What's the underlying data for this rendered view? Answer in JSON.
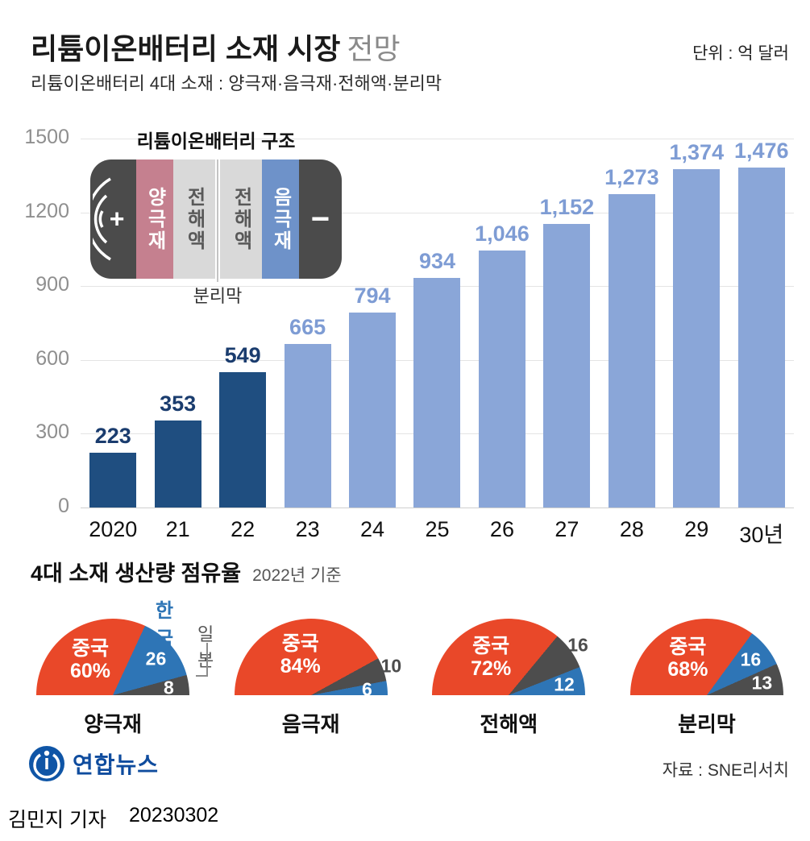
{
  "header": {
    "title_main": "리튬이온배터리 소재 시장",
    "title_sub": "전망",
    "unit": "단위 : 억 달러",
    "subtitle": "리튬이온배터리 4대 소재 : 양극재·음극재·전해액·분리막"
  },
  "battery": {
    "title": "리튬이온배터리 구조",
    "separator_label": "분리막",
    "segments": [
      {
        "kind": "cap-plus",
        "label": "+",
        "color": "#4b4b4b",
        "text_color": "#ffffff"
      },
      {
        "kind": "material",
        "label": "양극재",
        "color": "#c5808f",
        "text_color": "#ffffff"
      },
      {
        "kind": "material",
        "label": "전해액",
        "color": "#d9d9d9",
        "text_color": "#595959"
      },
      {
        "kind": "material",
        "label": "전해액",
        "color": "#d9d9d9",
        "text_color": "#595959"
      },
      {
        "kind": "material",
        "label": "음극재",
        "color": "#6e92c9",
        "text_color": "#ffffff"
      },
      {
        "kind": "cap-minus",
        "label": "−",
        "color": "#4b4b4b",
        "text_color": "#ffffff"
      }
    ]
  },
  "share_section": {
    "title": "4대 소재 생산량 점유율",
    "subtitle": "2022년 기준",
    "callout_korea": "한국",
    "callout_japan": "일본"
  },
  "footer": {
    "logo_text": "연합뉴스",
    "source": "자료 : SNE리서치"
  },
  "byline": {
    "name": "김민지 기자",
    "date": "20230302"
  },
  "chart_data": [
    {
      "type": "bar",
      "title": "리튬이온배터리 소재 시장 전망",
      "unit": "억 달러",
      "categories": [
        "2020",
        "21",
        "22",
        "23",
        "24",
        "25",
        "26",
        "27",
        "28",
        "29",
        "30년"
      ],
      "values": [
        223,
        353,
        549,
        665,
        794,
        934,
        1046,
        1152,
        1273,
        1374,
        1476
      ],
      "value_labels": [
        "223",
        "353",
        "549",
        "665",
        "794",
        "934",
        "1,046",
        "1,152",
        "1,273",
        "1,374",
        "1,476"
      ],
      "ylim": [
        0,
        1500
      ],
      "yticks": [
        0,
        300,
        600,
        900,
        1200,
        1500
      ],
      "grid": true,
      "dark_bar_count": 3,
      "colors": {
        "bar_dark": "#1f4e80",
        "bar_light": "#8aa6d8",
        "label_dark": "#1a3c6e",
        "label_light": "#7e9cd4"
      }
    },
    {
      "type": "pie",
      "shape": "semicircle",
      "title": "양극재",
      "unit": "%",
      "slices": [
        {
          "label": "중국",
          "value": 60,
          "display": "60%",
          "color": "#e94829",
          "label_style": "china"
        },
        {
          "label": "한국",
          "value": 26,
          "display": "26",
          "color": "#2e75b6",
          "label_style": "inside"
        },
        {
          "label": "일본",
          "value": 8,
          "display": "8",
          "color": "#4d4d4d",
          "label_style": "inside"
        }
      ]
    },
    {
      "type": "pie",
      "shape": "semicircle",
      "title": "음극재",
      "unit": "%",
      "slices": [
        {
          "label": "중국",
          "value": 84,
          "display": "84%",
          "color": "#e94829",
          "label_style": "china"
        },
        {
          "label": "일본",
          "value": 10,
          "display": "10",
          "color": "#4d4d4d",
          "label_style": "outside"
        },
        {
          "label": "한국",
          "value": 6,
          "display": "6",
          "color": "#2e75b6",
          "label_style": "inside"
        }
      ]
    },
    {
      "type": "pie",
      "shape": "semicircle",
      "title": "전해액",
      "unit": "%",
      "slices": [
        {
          "label": "중국",
          "value": 72,
          "display": "72%",
          "color": "#e94829",
          "label_style": "china"
        },
        {
          "label": "일본",
          "value": 16,
          "display": "16",
          "color": "#4d4d4d",
          "label_style": "outside"
        },
        {
          "label": "한국",
          "value": 12,
          "display": "12",
          "color": "#2e75b6",
          "label_style": "inside"
        }
      ]
    },
    {
      "type": "pie",
      "shape": "semicircle",
      "title": "분리막",
      "unit": "%",
      "slices": [
        {
          "label": "중국",
          "value": 68,
          "display": "68%",
          "color": "#e94829",
          "label_style": "china"
        },
        {
          "label": "한국",
          "value": 16,
          "display": "16",
          "color": "#2e75b6",
          "label_style": "inside"
        },
        {
          "label": "일본",
          "value": 13,
          "display": "13",
          "color": "#4d4d4d",
          "label_style": "inside"
        }
      ]
    }
  ]
}
